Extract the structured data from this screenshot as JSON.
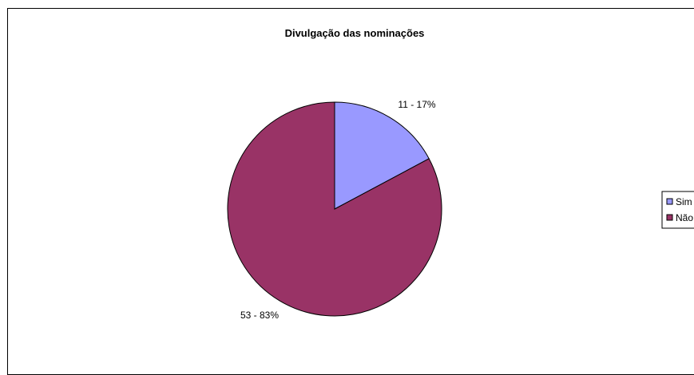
{
  "chart_data": {
    "type": "pie",
    "title": "Divulgação das nominações",
    "categories": [
      "Sim",
      "Não"
    ],
    "values": [
      11,
      53
    ],
    "percentages": [
      17,
      83
    ],
    "data_labels": [
      "11 - 17%",
      "53 - 83%"
    ],
    "colors": [
      "#9999ff",
      "#993366"
    ],
    "legend_placement": "right"
  }
}
